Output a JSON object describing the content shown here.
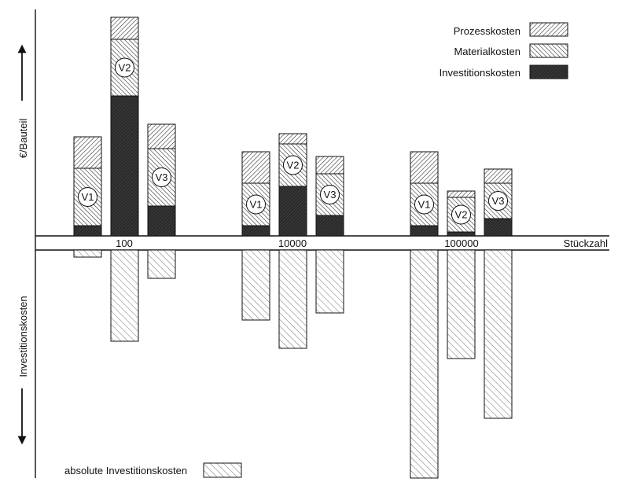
{
  "chart_data": {
    "type": "bar",
    "stacked": true,
    "title": "",
    "ylabel_top": "€/Bauteil",
    "ylabel_bottom": "Investitionskosten",
    "xlabel": "Stückzahl",
    "groups": [
      {
        "label": "100",
        "variants": [
          {
            "name": "V1",
            "investition": 13,
            "material": 73,
            "prozess": 40,
            "absolute": 9
          },
          {
            "name": "V2",
            "investition": 178,
            "material": 72,
            "prozess": 28,
            "absolute": 116
          },
          {
            "name": "V3",
            "investition": 38,
            "material": 73,
            "prozess": 31,
            "absolute": 36
          }
        ]
      },
      {
        "label": "10000",
        "variants": [
          {
            "name": "V1",
            "investition": 13,
            "material": 54,
            "prozess": 40,
            "absolute": 89
          },
          {
            "name": "V2",
            "investition": 63,
            "material": 54,
            "prozess": 13,
            "absolute": 125
          },
          {
            "name": "V3",
            "investition": 26,
            "material": 53,
            "prozess": 22,
            "absolute": 80
          }
        ]
      },
      {
        "label": "100000",
        "variants": [
          {
            "name": "V1",
            "investition": 13,
            "material": 54,
            "prozess": 40,
            "absolute": 290
          },
          {
            "name": "V2",
            "investition": 5,
            "material": 44,
            "prozess": 8,
            "absolute": 138
          },
          {
            "name": "V3",
            "investition": 22,
            "material": 45,
            "prozess": 18,
            "absolute": 214
          }
        ]
      }
    ],
    "legend": {
      "placement": "top-right",
      "items": [
        {
          "key": "prozess",
          "label": "Prozesskosten"
        },
        {
          "key": "material",
          "label": "Materialkosten"
        },
        {
          "key": "investition",
          "label": "Investitionskosten"
        }
      ],
      "bottom_item": {
        "key": "absolute",
        "label": "absolute Investitionskosten"
      }
    }
  }
}
